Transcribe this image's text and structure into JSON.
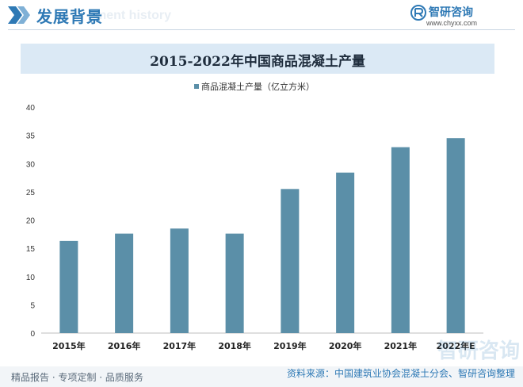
{
  "header": {
    "title": "发展背景",
    "subtitle_en": "ment history",
    "brand_name": "智研咨询",
    "brand_url": "www.chyxx.com"
  },
  "watermark": "智研咨询",
  "footer": {
    "left": "精品报告 · 专项定制 · 品质服务",
    "right": "资料来源：中国建筑业协会混凝土分会、智研咨询整理"
  },
  "colors": {
    "bar": "#5b8fa8",
    "title_bar_bg": "#dbe9f5",
    "accent": "#2e79b5"
  },
  "chart_data": {
    "type": "bar",
    "title": "2015-2022年中国商品混凝土产量",
    "categories": [
      "2015年",
      "2016年",
      "2017年",
      "2018年",
      "2019年",
      "2020年",
      "2021年",
      "2022年E"
    ],
    "series": [
      {
        "name": "商品混凝土产量（亿立方米）",
        "values": [
          16.3,
          17.6,
          18.5,
          17.6,
          25.5,
          28.4,
          32.9,
          34.5
        ]
      }
    ],
    "ylim": [
      0,
      40
    ],
    "yticks": [
      0,
      5,
      10,
      15,
      20,
      25,
      30,
      35,
      40
    ],
    "legend_position": "top-center",
    "grid": false
  }
}
